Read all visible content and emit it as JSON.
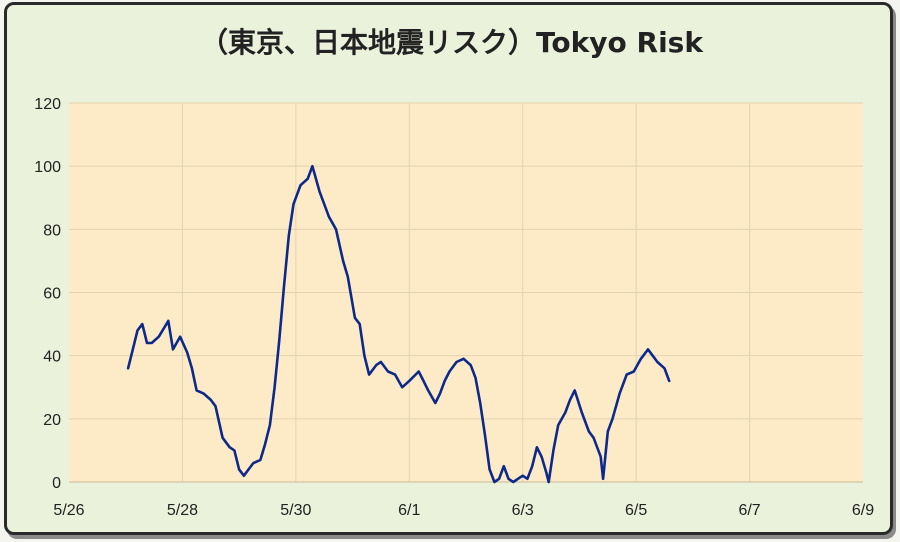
{
  "chart_data": {
    "type": "line",
    "title": "（東京、日本地震リスク）Tokyo Risk",
    "xlabel": "",
    "ylabel": "",
    "x_ticks": [
      "5/26",
      "5/28",
      "5/30",
      "6/1",
      "6/3",
      "6/5",
      "6/7",
      "6/9"
    ],
    "xlim": [
      "5/26",
      "6/9"
    ],
    "ylim": [
      0,
      120
    ],
    "y_ticks": [
      0,
      20,
      40,
      60,
      80,
      100,
      120
    ],
    "grid": true,
    "legend": "none",
    "colors": {
      "line": "#0d2a8a",
      "plot_bg": "#fdebc8",
      "grid": "#e3d3b0"
    },
    "series": [
      {
        "points": [
          [
            "5/27 01:00",
            36
          ],
          [
            "5/27 03:00",
            42
          ],
          [
            "5/27 05:00",
            48
          ],
          [
            "5/27 07:00",
            50
          ],
          [
            "5/27 09:00",
            44
          ],
          [
            "5/27 11:00",
            44
          ],
          [
            "5/27 14:00",
            46
          ],
          [
            "5/27 18:00",
            51
          ],
          [
            "5/27 20:00",
            42
          ],
          [
            "5/27 23:00",
            46
          ],
          [
            "5/28 02:00",
            41
          ],
          [
            "5/28 04:00",
            36
          ],
          [
            "5/28 06:00",
            29
          ],
          [
            "5/28 09:00",
            28
          ],
          [
            "5/28 12:00",
            26
          ],
          [
            "5/28 14:00",
            24
          ],
          [
            "5/28 17:00",
            14
          ],
          [
            "5/28 20:00",
            11
          ],
          [
            "5/28 22:00",
            10
          ],
          [
            "5/29 00:00",
            4
          ],
          [
            "5/29 02:00",
            2
          ],
          [
            "5/29 04:00",
            4
          ],
          [
            "5/29 06:00",
            6
          ],
          [
            "5/29 09:00",
            7
          ],
          [
            "5/29 11:00",
            12
          ],
          [
            "5/29 13:00",
            18
          ],
          [
            "5/29 15:00",
            30
          ],
          [
            "5/29 17:00",
            45
          ],
          [
            "5/29 19:00",
            62
          ],
          [
            "5/29 21:00",
            78
          ],
          [
            "5/29 23:00",
            88
          ],
          [
            "5/30 02:00",
            94
          ],
          [
            "5/30 05:00",
            96
          ],
          [
            "5/30 07:00",
            100
          ],
          [
            "5/30 10:00",
            92
          ],
          [
            "5/30 14:00",
            84
          ],
          [
            "5/30 17:00",
            80
          ],
          [
            "5/30 20:00",
            70
          ],
          [
            "5/30 22:00",
            65
          ],
          [
            "5/31 01:00",
            52
          ],
          [
            "5/31 03:00",
            50
          ],
          [
            "5/31 05:00",
            40
          ],
          [
            "5/31 07:00",
            34
          ],
          [
            "5/31 10:00",
            37
          ],
          [
            "5/31 12:00",
            38
          ],
          [
            "5/31 15:00",
            35
          ],
          [
            "5/31 18:00",
            34
          ],
          [
            "5/31 21:00",
            30
          ],
          [
            "6/1 00:00",
            32
          ],
          [
            "6/1 04:00",
            35
          ],
          [
            "6/1 06:00",
            32
          ],
          [
            "6/1 08:00",
            29
          ],
          [
            "6/1 11:00",
            25
          ],
          [
            "6/1 13:00",
            28
          ],
          [
            "6/1 15:00",
            32
          ],
          [
            "6/1 17:00",
            35
          ],
          [
            "6/1 20:00",
            38
          ],
          [
            "6/1 23:00",
            39
          ],
          [
            "6/2 02:00",
            37
          ],
          [
            "6/2 04:00",
            33
          ],
          [
            "6/2 06:00",
            25
          ],
          [
            "6/2 08:00",
            15
          ],
          [
            "6/2 10:00",
            4
          ],
          [
            "6/2 12:00",
            0
          ],
          [
            "6/2 14:00",
            1
          ],
          [
            "6/2 16:00",
            5
          ],
          [
            "6/2 18:00",
            1
          ],
          [
            "6/2 20:00",
            0
          ],
          [
            "6/2 22:00",
            1
          ],
          [
            "6/3 00:00",
            2
          ],
          [
            "6/3 02:00",
            1
          ],
          [
            "6/3 04:00",
            5
          ],
          [
            "6/3 06:00",
            11
          ],
          [
            "6/3 08:00",
            8
          ],
          [
            "6/3 10:00",
            3
          ],
          [
            "6/3 11:00",
            0
          ],
          [
            "6/3 13:00",
            10
          ],
          [
            "6/3 15:00",
            18
          ],
          [
            "6/3 18:00",
            22
          ],
          [
            "6/3 20:00",
            26
          ],
          [
            "6/3 22:00",
            29
          ],
          [
            "6/4 01:00",
            22
          ],
          [
            "6/4 04:00",
            16
          ],
          [
            "6/4 06:00",
            14
          ],
          [
            "6/4 09:00",
            8
          ],
          [
            "6/4 10:00",
            1
          ],
          [
            "6/4 12:00",
            16
          ],
          [
            "6/4 14:00",
            20
          ],
          [
            "6/4 17:00",
            28
          ],
          [
            "6/4 20:00",
            34
          ],
          [
            "6/4 23:00",
            35
          ],
          [
            "6/5 02:00",
            39
          ],
          [
            "6/5 05:00",
            42
          ],
          [
            "6/5 07:00",
            40
          ],
          [
            "6/5 09:00",
            38
          ],
          [
            "6/5 12:00",
            36
          ],
          [
            "6/5 14:00",
            32
          ]
        ]
      }
    ]
  }
}
